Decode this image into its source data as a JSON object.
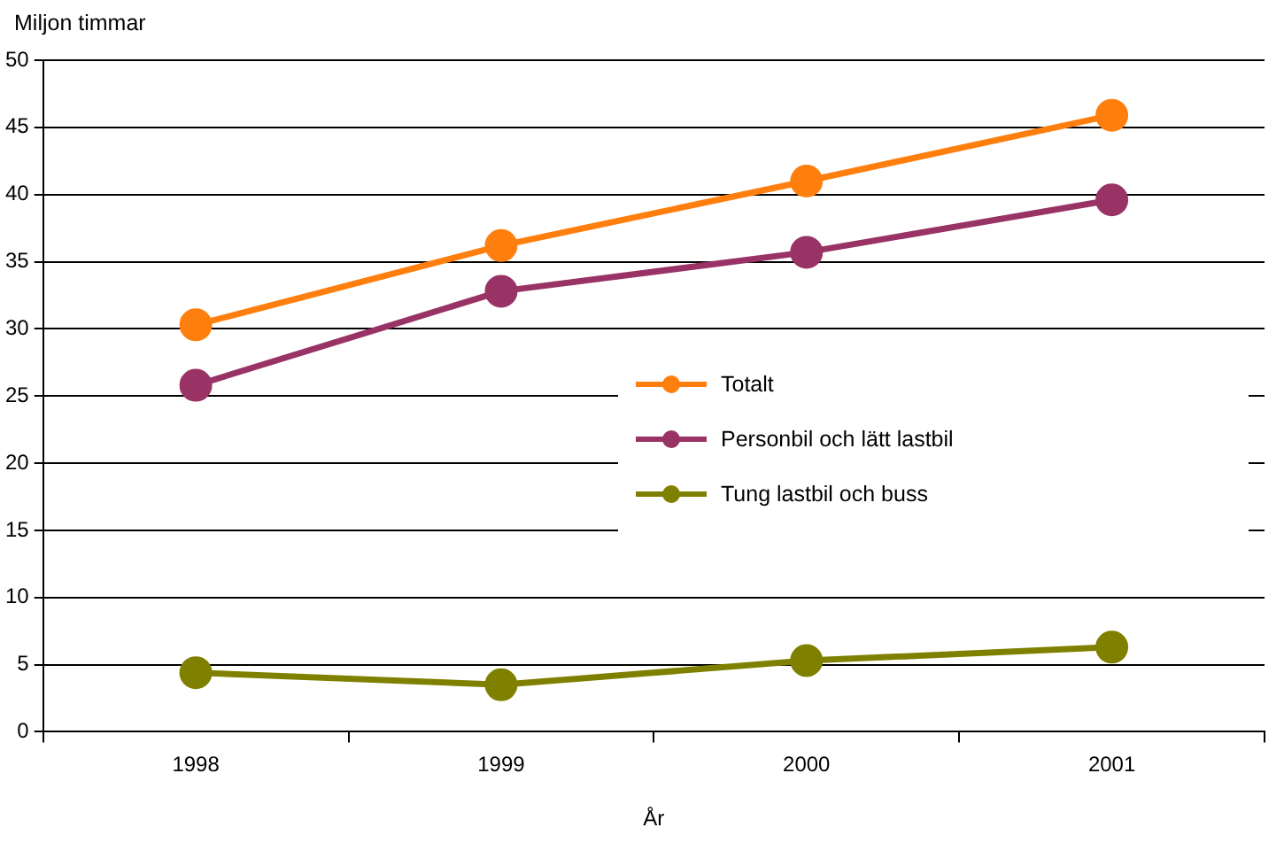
{
  "chart_data": {
    "type": "line",
    "ylabel": "Miljon timmar",
    "xlabel": "År",
    "categories": [
      "1998",
      "1999",
      "2000",
      "2001"
    ],
    "series": [
      {
        "name": "Totalt",
        "color": "#ff7f0e",
        "values": [
          30.3,
          36.2,
          41.0,
          45.9
        ]
      },
      {
        "name": "Personbil och lätt lastbil",
        "color": "#993366",
        "values": [
          25.8,
          32.8,
          35.7,
          39.6
        ]
      },
      {
        "name": "Tung lastbil och buss",
        "color": "#808000",
        "values": [
          4.4,
          3.5,
          5.3,
          6.3
        ]
      }
    ],
    "ylim": [
      0,
      50
    ],
    "yticks": [
      0,
      5,
      10,
      15,
      20,
      25,
      30,
      35,
      40,
      45,
      50
    ],
    "grid": "y",
    "legend": "right",
    "marker": "circle",
    "line_style": "solid"
  }
}
